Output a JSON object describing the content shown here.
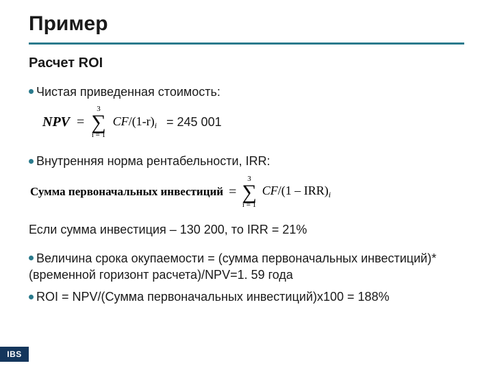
{
  "colors": {
    "accent": "#2a7a8c",
    "text": "#1a1a1a",
    "logo_bg": "#14365c",
    "logo_fg": "#ffffff",
    "background": "#ffffff"
  },
  "title": "Пример",
  "subtitle": "Расчет ROI",
  "bullet1": {
    "text": "Чистая приведенная стоимость:"
  },
  "formula1": {
    "lhs": "NPV",
    "eq": "=",
    "sum_upper": "3",
    "sum_lower": "i = 1",
    "rhs_cf": "CF",
    "rhs_rest": "/(1-r)",
    "rhs_sub": "i",
    "result": "= 245 001"
  },
  "bullet2": {
    "text": "Внутренняя норма рентабельности, IRR:"
  },
  "formula2": {
    "lhs": "Сумма первоначальных инвестиций",
    "eq": "=",
    "sum_upper": "3",
    "sum_lower": "i = 1",
    "rhs_cf": "CF",
    "rhs_rest": "/(1 – IRR)",
    "rhs_sub": "i"
  },
  "irr_line": "Если сумма инвестиция – 130 200, то IRR = 21%",
  "bullet3": {
    "text": "Величина срока окупаемости = (сумма первоначальных инвестиций)*(временной горизонт расчета)/NPV=1. 59 года"
  },
  "bullet4": {
    "text": "ROI = NPV/(Сумма первоначальных инвестиций)x100 = 188%"
  },
  "logo": "IBS"
}
